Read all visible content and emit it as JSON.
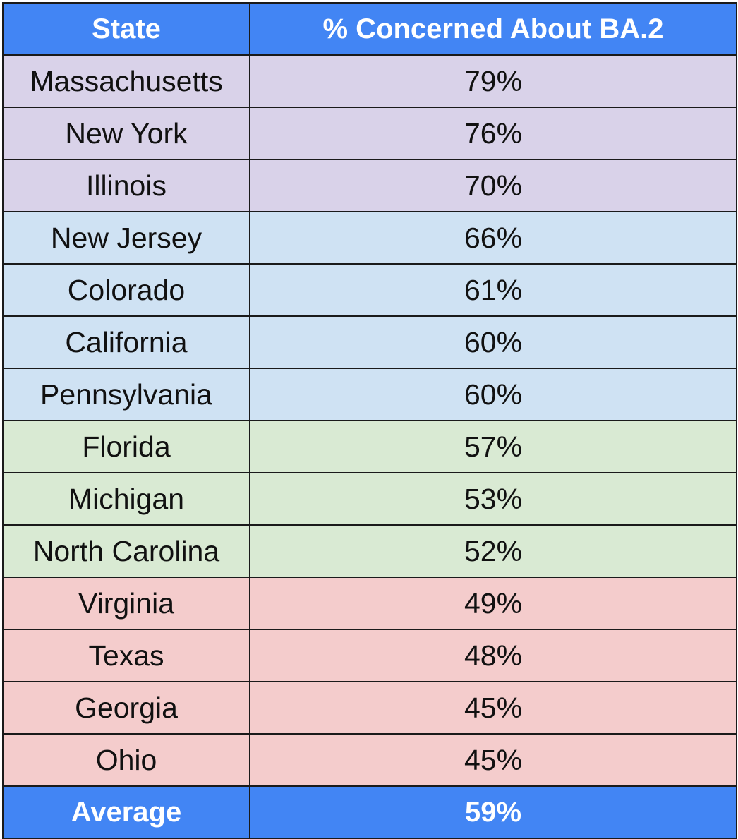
{
  "chart_data": {
    "type": "table",
    "columns": [
      "State",
      "% Concerned About BA.2"
    ],
    "rows": [
      {
        "state": "Massachusetts",
        "value": "79%",
        "group": 1
      },
      {
        "state": "New York",
        "value": "76%",
        "group": 1
      },
      {
        "state": "Illinois",
        "value": "70%",
        "group": 1
      },
      {
        "state": "New Jersey",
        "value": "66%",
        "group": 2
      },
      {
        "state": "Colorado",
        "value": "61%",
        "group": 2
      },
      {
        "state": "California",
        "value": "60%",
        "group": 2
      },
      {
        "state": "Pennsylvania",
        "value": "60%",
        "group": 2
      },
      {
        "state": "Florida",
        "value": "57%",
        "group": 3
      },
      {
        "state": "Michigan",
        "value": "53%",
        "group": 3
      },
      {
        "state": "North Carolina",
        "value": "52%",
        "group": 3
      },
      {
        "state": "Virginia",
        "value": "49%",
        "group": 4
      },
      {
        "state": "Texas",
        "value": "48%",
        "group": 4
      },
      {
        "state": "Georgia",
        "value": "45%",
        "group": 4
      },
      {
        "state": "Ohio",
        "value": "45%",
        "group": 4
      }
    ],
    "summary": {
      "state": "Average",
      "value": "59%"
    }
  },
  "colors": {
    "header": "#4285f4",
    "footer": "#4285f4",
    "group_1": "#d9d2e9",
    "group_2": "#cfe2f3",
    "group_3": "#d9ead3",
    "group_4": "#f4cccc"
  }
}
